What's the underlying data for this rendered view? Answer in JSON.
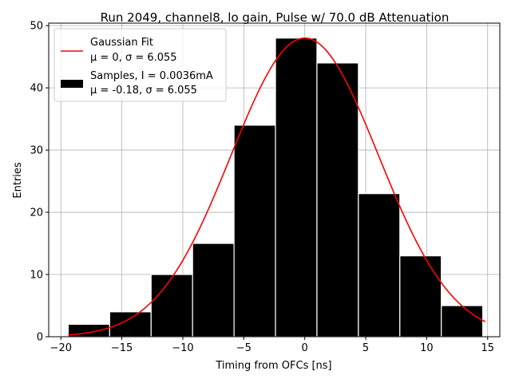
{
  "chart_data": {
    "type": "bar",
    "title": "Run 2049, channel8, lo gain, Pulse w/ 70.0 dB Attenuation",
    "xlabel": "Timing from OFCs [ns]",
    "ylabel": "Entries",
    "xlim": [
      -21.0,
      16.0
    ],
    "ylim": [
      0,
      50.4
    ],
    "x_ticks": [
      -20,
      -15,
      -10,
      -5,
      0,
      5,
      10,
      15
    ],
    "y_ticks": [
      0,
      10,
      20,
      30,
      40,
      50
    ],
    "grid": true,
    "legend_position": "top-left",
    "bins": [
      {
        "x0": -19.4,
        "x1": -16.0,
        "count": 2
      },
      {
        "x0": -16.0,
        "x1": -12.6,
        "count": 4
      },
      {
        "x0": -12.6,
        "x1": -9.2,
        "count": 10
      },
      {
        "x0": -9.2,
        "x1": -5.8,
        "count": 15
      },
      {
        "x0": -5.8,
        "x1": -2.4,
        "count": 34
      },
      {
        "x0": -2.4,
        "x1": 1.0,
        "count": 48
      },
      {
        "x0": 1.0,
        "x1": 4.4,
        "count": 44
      },
      {
        "x0": 4.4,
        "x1": 7.8,
        "count": 23
      },
      {
        "x0": 7.8,
        "x1": 11.2,
        "count": 13
      },
      {
        "x0": 11.2,
        "x1": 14.6,
        "count": 5
      }
    ],
    "fit": {
      "mu": 0,
      "sigma": 6.055,
      "amplitude": 48,
      "x_range": [
        -19.4,
        14.8
      ]
    },
    "series": [
      {
        "name": "Gaussian Fit",
        "params": "μ = 0, σ = 6.055",
        "color": "#ff0000",
        "kind": "line"
      },
      {
        "name": "Samples, I = 0.0036mA",
        "params": "μ = -0.18, σ = 6.055",
        "color": "#000000",
        "kind": "bar"
      }
    ]
  }
}
